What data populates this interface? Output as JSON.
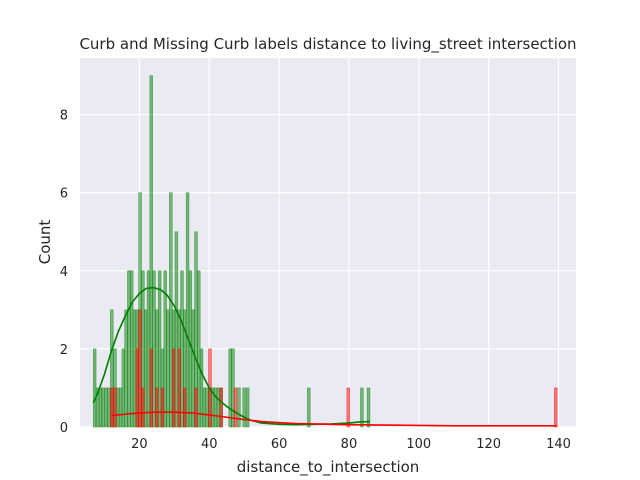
{
  "chart_data": {
    "type": "histogram",
    "title": "Curb and Missing Curb labels distance to living_street intersection",
    "xlabel": "distance_to_intersection",
    "ylabel": "Count",
    "xlim": [
      3,
      145
    ],
    "ylim": [
      0,
      9.45
    ],
    "xticks": [
      20,
      40,
      60,
      80,
      100,
      120,
      140
    ],
    "yticks": [
      0,
      2,
      4,
      6,
      8
    ],
    "grid": true,
    "legend": "none",
    "series": [
      {
        "color": "#008000",
        "bins": [
          {
            "x": 7.2,
            "count": 2
          },
          {
            "x": 8.0,
            "count": 1
          },
          {
            "x": 8.9,
            "count": 1
          },
          {
            "x": 9.6,
            "count": 1
          },
          {
            "x": 10.5,
            "count": 1
          },
          {
            "x": 11.3,
            "count": 1
          },
          {
            "x": 12.1,
            "count": 3
          },
          {
            "x": 13.0,
            "count": 2
          },
          {
            "x": 13.8,
            "count": 1
          },
          {
            "x": 14.6,
            "count": 1
          },
          {
            "x": 15.4,
            "count": 2
          },
          {
            "x": 16.2,
            "count": 3
          },
          {
            "x": 17.0,
            "count": 4
          },
          {
            "x": 17.8,
            "count": 4
          },
          {
            "x": 18.6,
            "count": 3
          },
          {
            "x": 19.4,
            "count": 3
          },
          {
            "x": 20.2,
            "count": 6
          },
          {
            "x": 21.0,
            "count": 4
          },
          {
            "x": 21.8,
            "count": 3
          },
          {
            "x": 22.6,
            "count": 4
          },
          {
            "x": 23.4,
            "count": 9
          },
          {
            "x": 24.2,
            "count": 4
          },
          {
            "x": 25.0,
            "count": 3
          },
          {
            "x": 25.8,
            "count": 4
          },
          {
            "x": 26.6,
            "count": 2
          },
          {
            "x": 27.4,
            "count": 4
          },
          {
            "x": 28.2,
            "count": 3
          },
          {
            "x": 29.0,
            "count": 6
          },
          {
            "x": 29.8,
            "count": 3
          },
          {
            "x": 30.6,
            "count": 5
          },
          {
            "x": 31.4,
            "count": 3
          },
          {
            "x": 32.2,
            "count": 4
          },
          {
            "x": 33.0,
            "count": 3
          },
          {
            "x": 33.8,
            "count": 6
          },
          {
            "x": 34.6,
            "count": 4
          },
          {
            "x": 35.4,
            "count": 3
          },
          {
            "x": 36.2,
            "count": 5
          },
          {
            "x": 37.0,
            "count": 4
          },
          {
            "x": 37.8,
            "count": 2
          },
          {
            "x": 38.6,
            "count": 1
          },
          {
            "x": 39.4,
            "count": 1
          },
          {
            "x": 40.2,
            "count": 1
          },
          {
            "x": 41.0,
            "count": 1
          },
          {
            "x": 41.8,
            "count": 1
          },
          {
            "x": 42.6,
            "count": 1
          },
          {
            "x": 43.4,
            "count": 1
          },
          {
            "x": 46.0,
            "count": 2
          },
          {
            "x": 46.8,
            "count": 2
          },
          {
            "x": 48.5,
            "count": 1
          },
          {
            "x": 50.0,
            "count": 1
          },
          {
            "x": 51.0,
            "count": 1
          },
          {
            "x": 68.5,
            "count": 1
          },
          {
            "x": 83.7,
            "count": 1
          },
          {
            "x": 85.6,
            "count": 1
          }
        ],
        "kde": [
          [
            6.8,
            0.62
          ],
          [
            8,
            0.85
          ],
          [
            10,
            1.35
          ],
          [
            12,
            1.95
          ],
          [
            14,
            2.45
          ],
          [
            16,
            2.85
          ],
          [
            18,
            3.2
          ],
          [
            20,
            3.42
          ],
          [
            22,
            3.55
          ],
          [
            24,
            3.57
          ],
          [
            26,
            3.52
          ],
          [
            28,
            3.37
          ],
          [
            30,
            3.1
          ],
          [
            32,
            2.72
          ],
          [
            34,
            2.25
          ],
          [
            36,
            1.78
          ],
          [
            38,
            1.35
          ],
          [
            40,
            1.0
          ],
          [
            42,
            0.76
          ],
          [
            44,
            0.6
          ],
          [
            46,
            0.46
          ],
          [
            48,
            0.35
          ],
          [
            50,
            0.25
          ],
          [
            52,
            0.17
          ],
          [
            55,
            0.1
          ],
          [
            60,
            0.07
          ],
          [
            65,
            0.06
          ],
          [
            70,
            0.07
          ],
          [
            75,
            0.08
          ],
          [
            80,
            0.1
          ],
          [
            83,
            0.13
          ],
          [
            86,
            0.14
          ]
        ]
      },
      {
        "color": "#ff0000",
        "bins": [
          {
            "x": 12.1,
            "count": 1
          },
          {
            "x": 13.0,
            "count": 1
          },
          {
            "x": 19.4,
            "count": 2
          },
          {
            "x": 20.2,
            "count": 3
          },
          {
            "x": 21.0,
            "count": 1
          },
          {
            "x": 23.4,
            "count": 2
          },
          {
            "x": 25.0,
            "count": 1
          },
          {
            "x": 26.6,
            "count": 1
          },
          {
            "x": 29.8,
            "count": 2
          },
          {
            "x": 31.4,
            "count": 2
          },
          {
            "x": 33.0,
            "count": 1
          },
          {
            "x": 36.2,
            "count": 1
          },
          {
            "x": 40.2,
            "count": 2
          },
          {
            "x": 43.4,
            "count": 1
          },
          {
            "x": 47.5,
            "count": 1
          },
          {
            "x": 79.8,
            "count": 1
          },
          {
            "x": 139.2,
            "count": 1
          }
        ],
        "kde": [
          [
            12,
            0.29
          ],
          [
            16,
            0.33
          ],
          [
            20,
            0.36
          ],
          [
            25,
            0.38
          ],
          [
            30,
            0.38
          ],
          [
            35,
            0.36
          ],
          [
            40,
            0.31
          ],
          [
            45,
            0.25
          ],
          [
            50,
            0.19
          ],
          [
            55,
            0.14
          ],
          [
            60,
            0.11
          ],
          [
            65,
            0.09
          ],
          [
            70,
            0.08
          ],
          [
            75,
            0.07
          ],
          [
            80,
            0.06
          ],
          [
            90,
            0.05
          ],
          [
            100,
            0.04
          ],
          [
            110,
            0.03
          ],
          [
            120,
            0.03
          ],
          [
            130,
            0.03
          ],
          [
            139.5,
            0.03
          ]
        ]
      }
    ]
  }
}
